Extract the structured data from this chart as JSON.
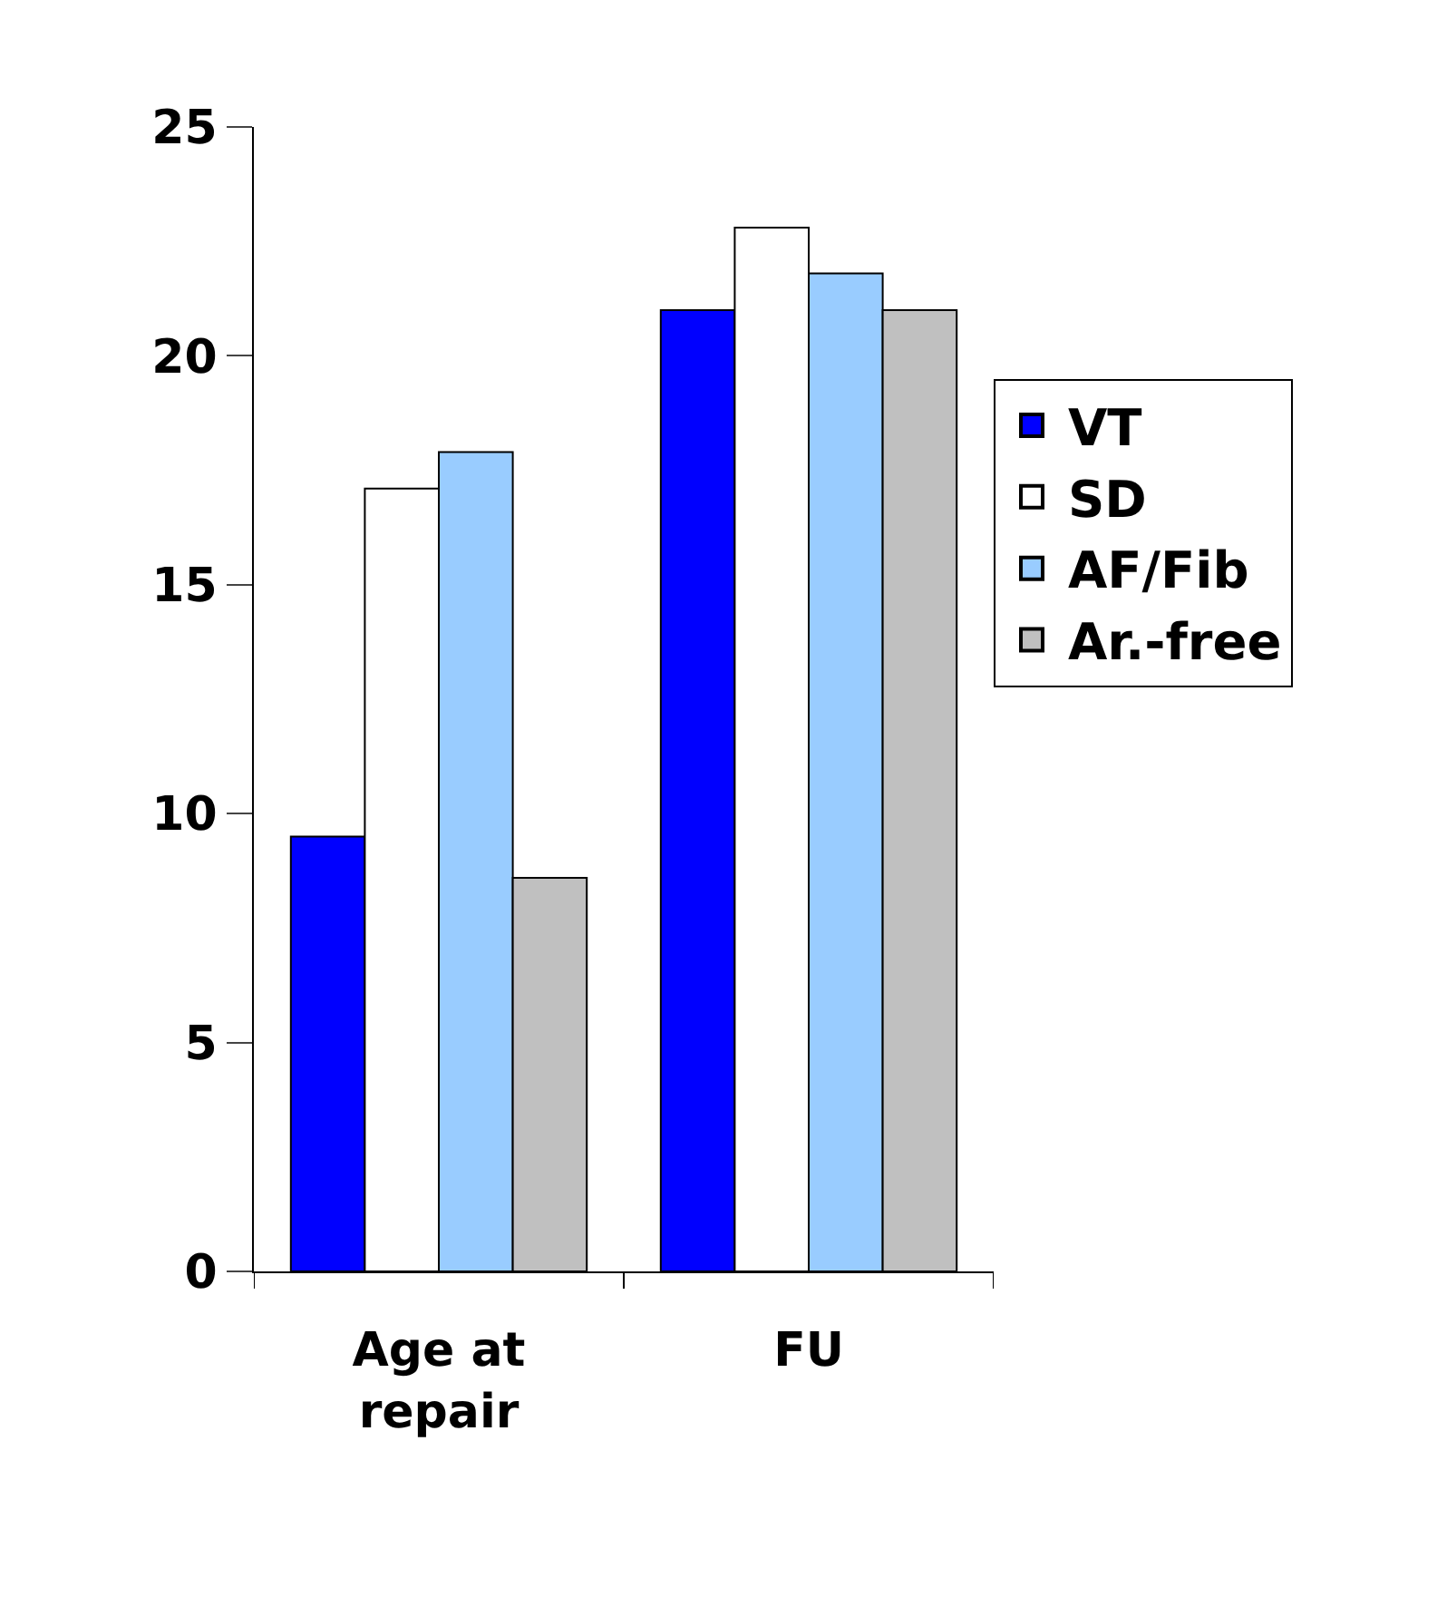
{
  "chart_data": {
    "type": "bar",
    "categories": [
      "Age at repair",
      "FU"
    ],
    "series": [
      {
        "name": "VT",
        "color": "#0000ff",
        "values": [
          9.5,
          21.0
        ]
      },
      {
        "name": "SD",
        "color": "#ffffff",
        "values": [
          17.1,
          22.8
        ]
      },
      {
        "name": "AF/Fib",
        "color": "#99ccff",
        "values": [
          17.9,
          21.8
        ]
      },
      {
        "name": "Ar.-free",
        "color": "#c0c0c0",
        "values": [
          8.6,
          21.0
        ]
      }
    ],
    "ylim": [
      0,
      25
    ],
    "yticks": [
      0,
      5,
      10,
      15,
      20,
      25
    ],
    "legend": "right"
  }
}
